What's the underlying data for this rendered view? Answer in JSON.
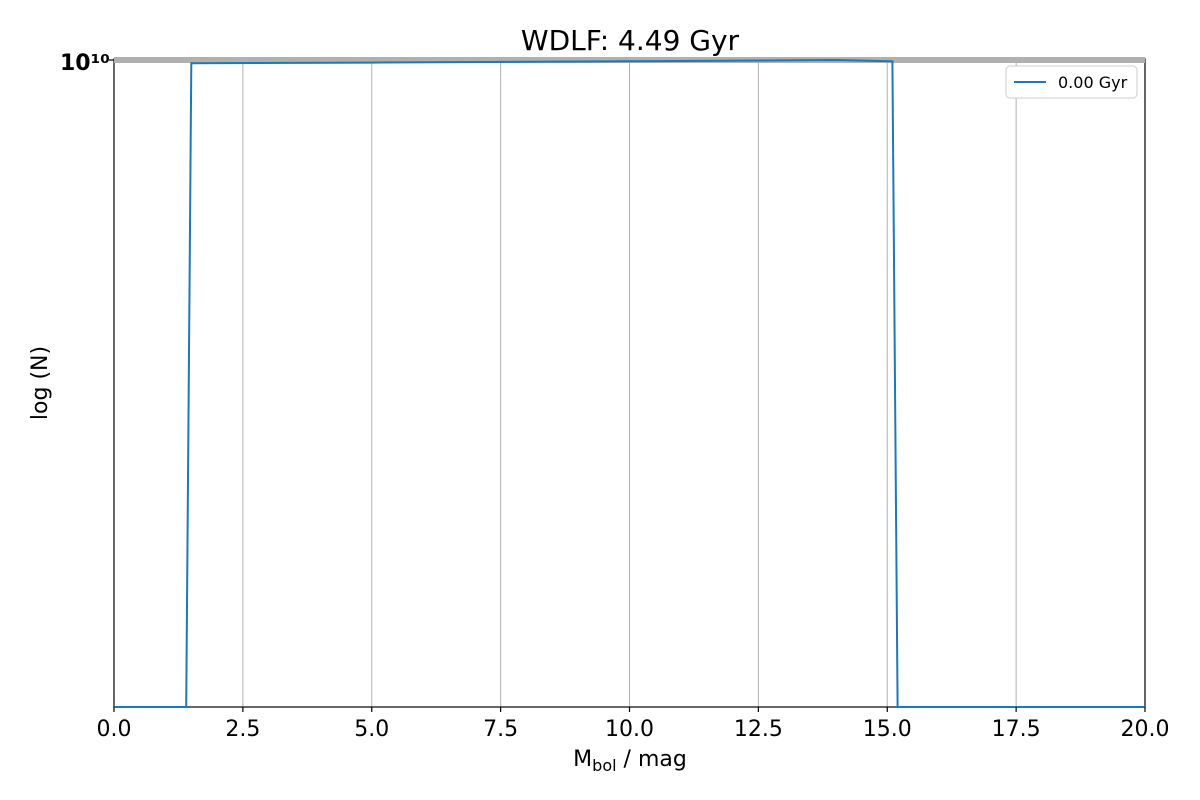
{
  "chart_data": {
    "type": "line",
    "title": "WDLF: 4.49 Gyr",
    "xlabel": "M",
    "xlabel_sub": "bol",
    "xlabel_suffix": " / mag",
    "ylabel": "log (N)",
    "xlim": [
      0,
      20
    ],
    "x_ticks": [
      0,
      2.5,
      5,
      7.5,
      10,
      12.5,
      15,
      17.5,
      20
    ],
    "x_tick_labels": [
      "0.0",
      "2.5",
      "5.0",
      "7.5",
      "10.0",
      "12.5",
      "15.0",
      "17.5",
      "20.0"
    ],
    "y_tick_label_overlap": "10¹⁰",
    "grid": "x",
    "legend": {
      "position": "top-right",
      "entries": [
        "0.00 Gyr"
      ]
    },
    "series": [
      {
        "name": "0.00 Gyr",
        "color": "#1f77b4",
        "x": [
          0.0,
          1.4,
          1.5,
          5.0,
          10.0,
          14.0,
          15.1,
          15.2,
          20.0
        ],
        "y_level": [
          0.0,
          0.0,
          0.995,
          0.996,
          0.998,
          1.0,
          0.998,
          0.0,
          0.0
        ]
      }
    ]
  }
}
